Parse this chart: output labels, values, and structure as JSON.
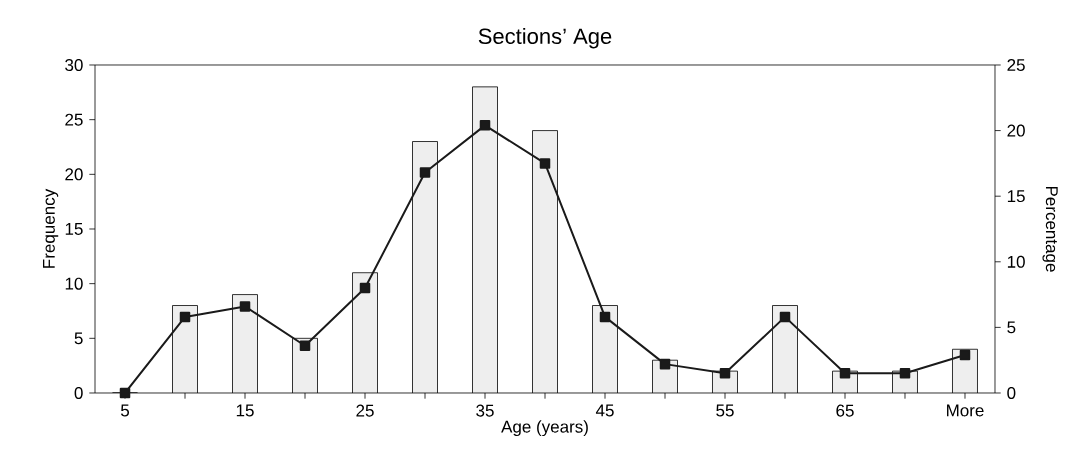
{
  "chart_data": {
    "type": "bar",
    "title": "Sections’ Age",
    "xlabel": "Age (years)",
    "ylabel": "Frequency",
    "y2label": "Percentage",
    "categories": [
      "5",
      null,
      "15",
      null,
      "25",
      null,
      "35",
      null,
      "45",
      null,
      "55",
      null,
      "65",
      null,
      "More"
    ],
    "series": [
      {
        "color": "#eeeeee",
        "values": [
          0,
          8,
          9,
          5,
          11,
          23,
          28,
          24,
          8,
          3,
          2,
          8,
          2,
          2,
          4
        ]
      },
      {
        "type": "line",
        "axis": "y2",
        "color": "#1a1a1a",
        "marker": "square",
        "line_style": "solid",
        "values": [
          0,
          5.8,
          6.6,
          3.6,
          8.0,
          16.8,
          20.4,
          17.5,
          5.8,
          2.2,
          1.5,
          5.8,
          1.5,
          1.5,
          2.9
        ]
      }
    ],
    "ylim": [
      0,
      30
    ],
    "yticks": [
      0,
      5,
      10,
      15,
      20,
      25,
      30
    ],
    "y2lim": [
      0,
      25
    ],
    "y2ticks": [
      0,
      5,
      10,
      15,
      20,
      25
    ],
    "grid": false
  }
}
